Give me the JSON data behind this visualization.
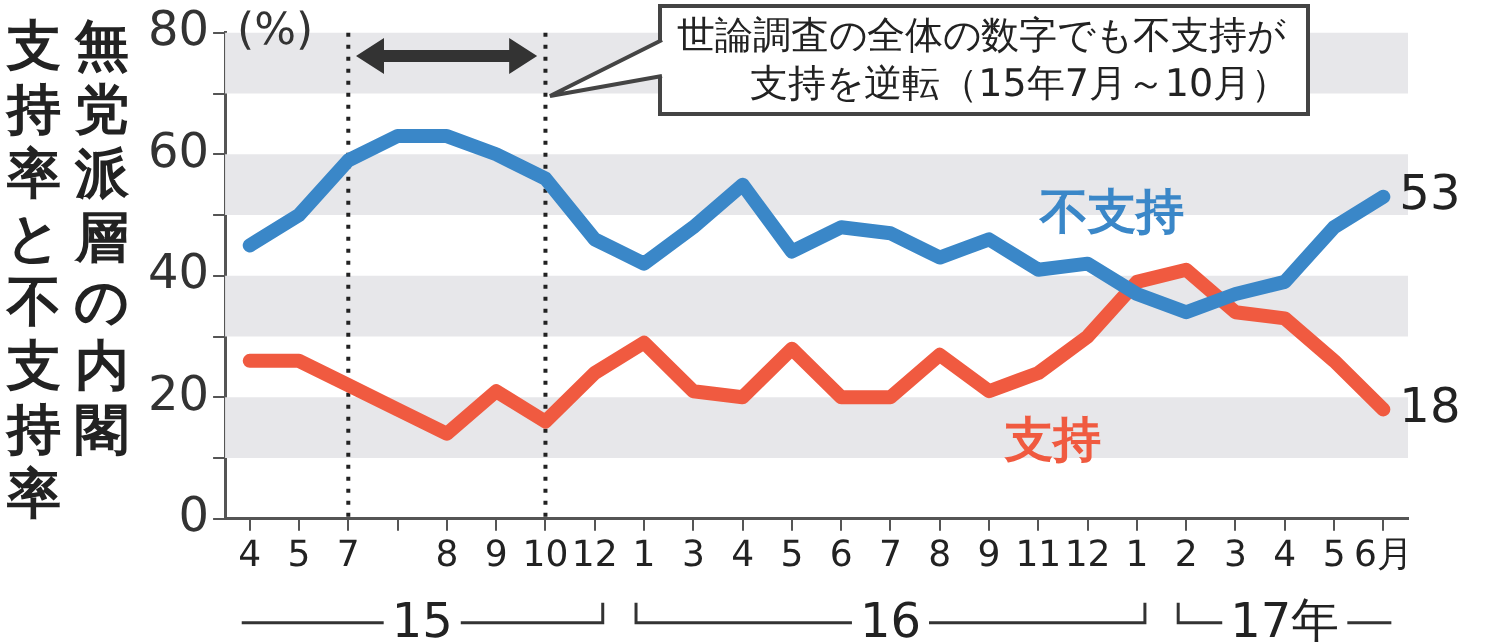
{
  "chart_data": {
    "type": "line",
    "title": "無党派層の内閣",
    "subtitle": "支持率と不支持率",
    "ylabel": "(%)",
    "categories": [
      "4",
      "5",
      "7",
      null,
      "8",
      "9",
      "10",
      "12",
      "1",
      "3",
      "4",
      "5",
      "6",
      "7",
      "8",
      "9",
      "11",
      "12",
      "1",
      "2",
      "3",
      "4",
      "5",
      "6月"
    ],
    "series": [
      {
        "name": "不支持",
        "color": "#3a87c8",
        "values": [
          45,
          50,
          59,
          63,
          63,
          60,
          56,
          46,
          42,
          48,
          55,
          44,
          48,
          47,
          43,
          46,
          41,
          42,
          37,
          34,
          37,
          39,
          48,
          53
        ],
        "value_labels": [
          null,
          null,
          null,
          null,
          null,
          null,
          null,
          null,
          null,
          null,
          null,
          null,
          null,
          null,
          null,
          null,
          null,
          null,
          null,
          null,
          null,
          null,
          null,
          "53"
        ]
      },
      {
        "name": "支持",
        "color": "#f05a40",
        "values": [
          26,
          26,
          22,
          18,
          14,
          21,
          16,
          24,
          29,
          21,
          20,
          28,
          20,
          20,
          27,
          21,
          24,
          30,
          39,
          41,
          34,
          33,
          26,
          18
        ],
        "value_labels": [
          null,
          null,
          null,
          null,
          null,
          null,
          null,
          null,
          null,
          null,
          null,
          null,
          null,
          null,
          null,
          null,
          null,
          null,
          null,
          null,
          null,
          null,
          null,
          "18"
        ]
      }
    ],
    "ylim": [
      0,
      80
    ],
    "yticks": [
      0,
      {
        "value": 10,
        "label": null
      },
      20,
      {
        "value": 30,
        "label": null
      },
      40,
      {
        "value": 50,
        "label": null
      },
      60,
      {
        "value": 70,
        "label": null
      },
      80
    ],
    "bands": [
      {
        "axis": "y",
        "from": 10,
        "to": 20,
        "color": "#e7e7ea"
      },
      {
        "axis": "y",
        "from": 30,
        "to": 40,
        "color": "#e7e7ea"
      },
      {
        "axis": "y",
        "from": 50,
        "to": 60,
        "color": "#e7e7ea"
      },
      {
        "axis": "y",
        "from": 70,
        "to": 80,
        "color": "#e7e7ea"
      }
    ],
    "legend": false,
    "marker": "none",
    "line_style": "solid",
    "ref_lines": [
      {
        "axis": "x",
        "value": "7",
        "line_style": "dotted",
        "color": "#222222"
      },
      {
        "axis": "x",
        "value": "10",
        "line_style": "dotted",
        "color": "#222222"
      }
    ],
    "annotations": [
      "世論調査の全体の数字でも不支持が支持を逆転（15年7月～10月）",
      "15",
      "16",
      "17年"
    ]
  }
}
